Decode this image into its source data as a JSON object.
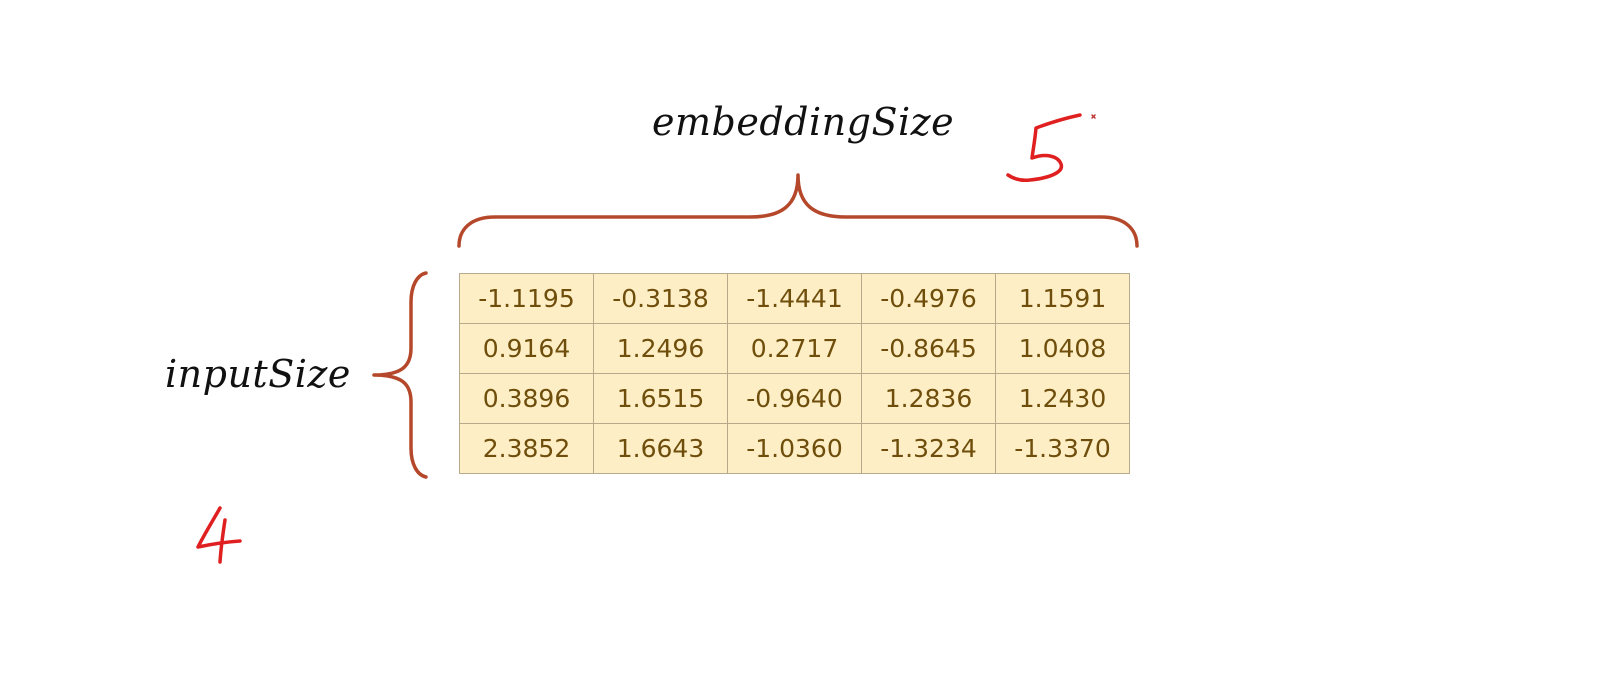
{
  "labels": {
    "embedding": "embeddingSize",
    "input": "inputSize"
  },
  "annotations": {
    "cols": "5",
    "rows": "4"
  },
  "colors": {
    "brace": "#b5482a",
    "ink": "#e02020",
    "cell_fill": "#fdeec6",
    "cell_border": "#b7a98c",
    "cell_text": "#6f4e0c"
  },
  "matrix": [
    [
      "-1.1195",
      "-0.3138",
      "-1.4441",
      "-0.4976",
      "1.1591"
    ],
    [
      "0.9164",
      "1.2496",
      "0.2717",
      "-0.8645",
      "1.0408"
    ],
    [
      "0.3896",
      "1.6515",
      "-0.9640",
      "1.2836",
      "1.2430"
    ],
    [
      "2.3852",
      "1.6643",
      "-1.0360",
      "-1.3234",
      "-1.3370"
    ]
  ]
}
